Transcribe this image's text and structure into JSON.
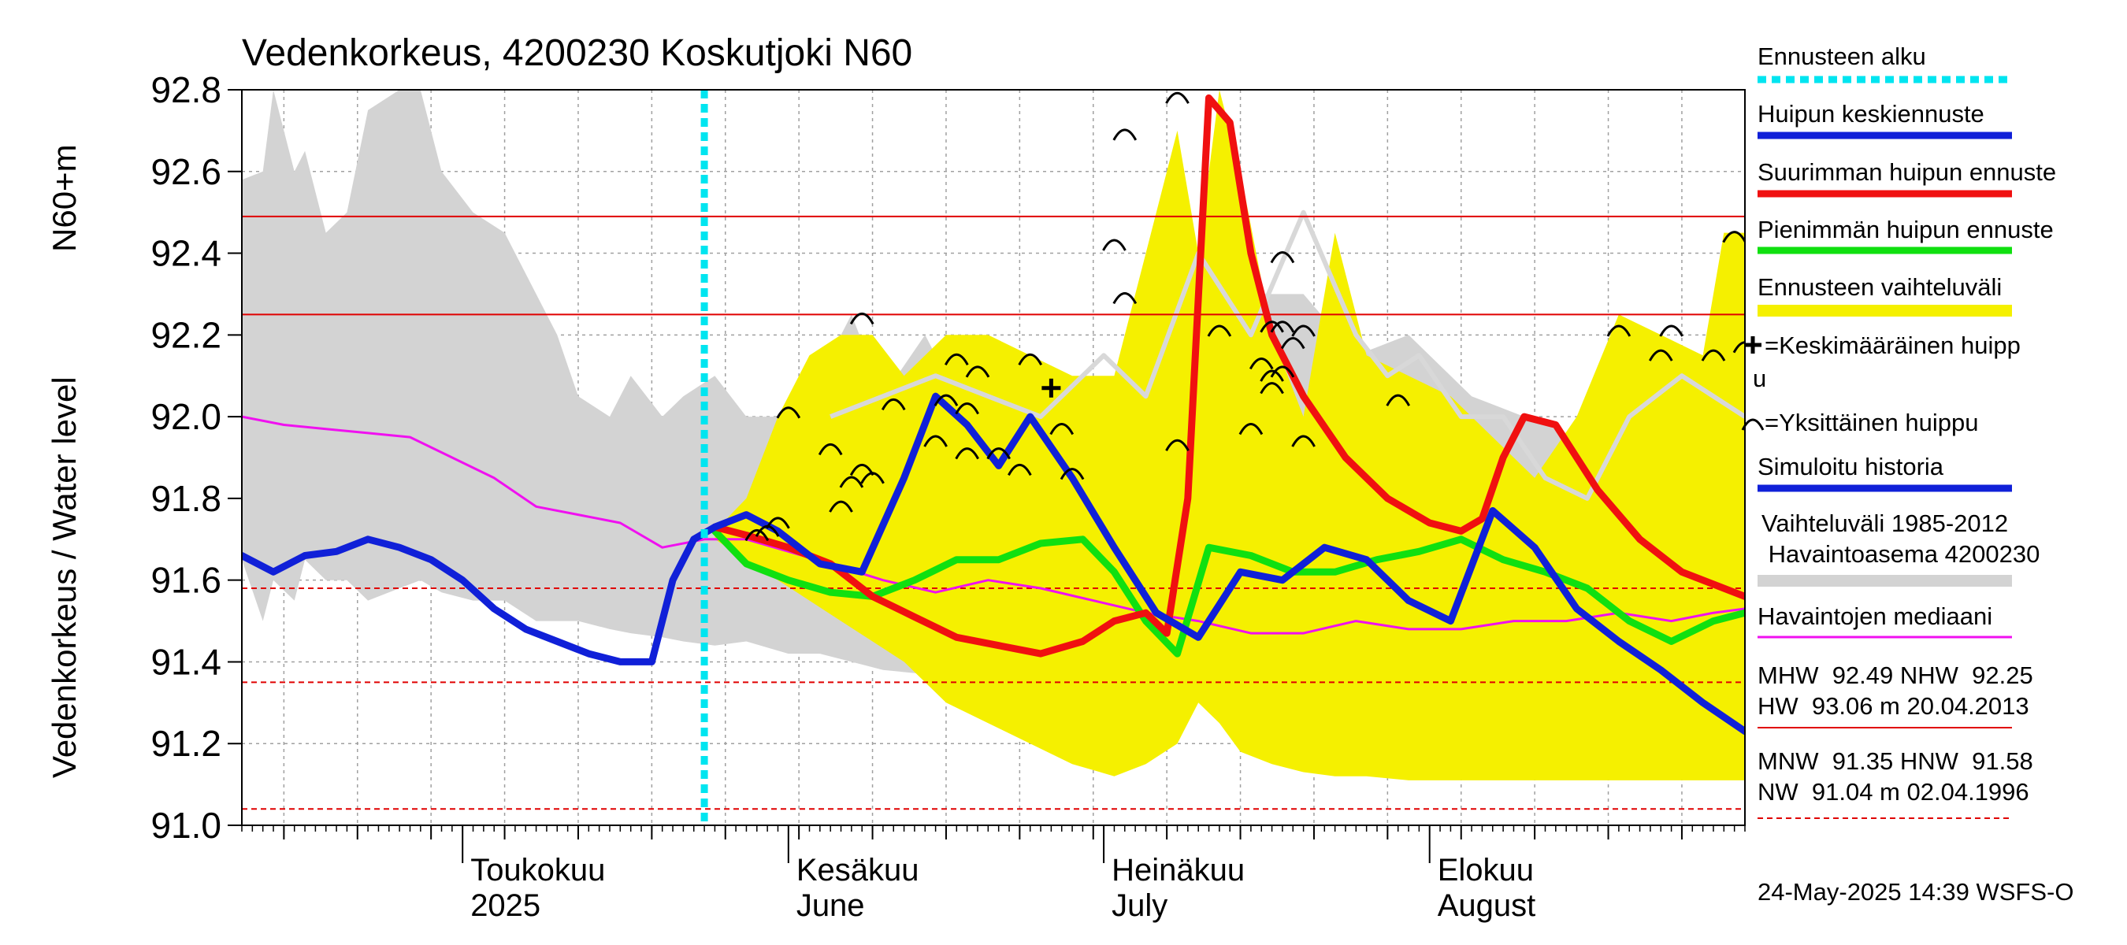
{
  "chart_data": {
    "type": "line",
    "title": "Vedenkorkeus, 4200230 Koskutjoki N60",
    "ylabel_top": "N60+m",
    "ylabel": "Vedenkorkeus / Water level",
    "ylim": [
      91.0,
      92.8
    ],
    "y_ticks": [
      "91.0",
      "91.2",
      "91.4",
      "91.6",
      "91.8",
      "92.0",
      "92.2",
      "92.4",
      "92.6",
      "92.8"
    ],
    "x_range": [
      "2025-04-10",
      "2025-08-31"
    ],
    "months": [
      {
        "fi": "Toukokuu",
        "en": "2025",
        "date": "2025-05-01"
      },
      {
        "fi": "Kesäkuu",
        "en": "June",
        "date": "2025-06-01"
      },
      {
        "fi": "Heinäkuu",
        "en": "July",
        "date": "2025-07-01"
      },
      {
        "fi": "Elokuu",
        "en": "August",
        "date": "2025-08-01"
      }
    ],
    "forecast_start": "2025-05-24",
    "hlines": {
      "solid": [
        92.49,
        92.25
      ],
      "dashed": [
        91.58,
        91.35,
        91.04
      ]
    },
    "history_band": {
      "x": [
        "2025-04-10",
        "2025-04-12",
        "2025-04-13",
        "2025-04-15",
        "2025-04-16",
        "2025-04-18",
        "2025-04-20",
        "2025-04-22",
        "2025-04-25",
        "2025-04-27",
        "2025-04-29",
        "2025-05-02",
        "2025-05-05",
        "2025-05-08",
        "2025-05-10",
        "2025-05-12",
        "2025-05-15",
        "2025-05-17",
        "2025-05-20",
        "2025-05-22",
        "2025-05-25",
        "2025-05-28",
        "2025-06-01",
        "2025-06-04",
        "2025-06-07",
        "2025-06-10",
        "2025-06-14",
        "2025-06-18",
        "2025-06-22",
        "2025-06-26",
        "2025-07-01",
        "2025-07-06",
        "2025-07-10",
        "2025-07-13",
        "2025-07-16",
        "2025-07-20",
        "2025-07-25",
        "2025-07-30",
        "2025-08-05",
        "2025-08-10",
        "2025-08-15",
        "2025-08-20",
        "2025-08-25",
        "2025-08-29",
        "2025-08-31"
      ],
      "upper": [
        92.58,
        92.6,
        92.8,
        92.6,
        92.65,
        92.45,
        92.5,
        92.75,
        92.8,
        92.8,
        92.6,
        92.5,
        92.45,
        92.3,
        92.2,
        92.05,
        92.0,
        92.1,
        92.0,
        92.05,
        92.1,
        92.0,
        92.0,
        92.1,
        92.25,
        92.05,
        92.2,
        92.0,
        92.15,
        91.95,
        92.0,
        92.1,
        92.15,
        92.25,
        92.3,
        92.3,
        92.15,
        92.2,
        92.05,
        92.0,
        91.95,
        91.75,
        91.9,
        92.2,
        92.3
      ],
      "lower": [
        91.65,
        91.5,
        91.6,
        91.55,
        91.65,
        91.6,
        91.6,
        91.55,
        91.58,
        91.6,
        91.57,
        91.55,
        91.55,
        91.5,
        91.5,
        91.5,
        91.48,
        91.47,
        91.46,
        91.45,
        91.44,
        91.45,
        91.42,
        91.42,
        91.4,
        91.38,
        91.37,
        91.38,
        91.36,
        91.34,
        91.33,
        91.31,
        91.3,
        91.3,
        91.3,
        91.29,
        91.28,
        91.28,
        91.28,
        91.27,
        91.27,
        91.27,
        91.26,
        91.25,
        91.25
      ]
    },
    "history_median": {
      "x": [
        "2025-06-05",
        "2025-06-10",
        "2025-06-15",
        "2025-06-20",
        "2025-06-25",
        "2025-07-01",
        "2025-07-05",
        "2025-07-10",
        "2025-07-15",
        "2025-07-20",
        "2025-07-25",
        "2025-07-28",
        "2025-07-31",
        "2025-08-04",
        "2025-08-08",
        "2025-08-12",
        "2025-08-16",
        "2025-08-20",
        "2025-08-25",
        "2025-08-28",
        "2025-08-31"
      ],
      "y": [
        92.0,
        92.05,
        92.1,
        92.05,
        92.0,
        92.15,
        92.05,
        92.4,
        92.2,
        92.5,
        92.2,
        92.1,
        92.15,
        92.0,
        92.0,
        91.85,
        91.8,
        92.0,
        92.1,
        92.05,
        92.0
      ]
    },
    "forecast_band": {
      "x": [
        "2025-05-25",
        "2025-05-28",
        "2025-05-31",
        "2025-06-03",
        "2025-06-06",
        "2025-06-09",
        "2025-06-12",
        "2025-06-16",
        "2025-06-20",
        "2025-06-24",
        "2025-06-28",
        "2025-07-02",
        "2025-07-05",
        "2025-07-08",
        "2025-07-10",
        "2025-07-12",
        "2025-07-14",
        "2025-07-17",
        "2025-07-20",
        "2025-07-23",
        "2025-07-26",
        "2025-07-30",
        "2025-08-03",
        "2025-08-07",
        "2025-08-11",
        "2025-08-15",
        "2025-08-19",
        "2025-08-23",
        "2025-08-27",
        "2025-08-29",
        "2025-08-31"
      ],
      "upper": [
        91.72,
        91.8,
        92.0,
        92.15,
        92.2,
        92.2,
        92.1,
        92.2,
        92.2,
        92.15,
        92.1,
        92.1,
        92.4,
        92.7,
        92.4,
        92.8,
        92.6,
        92.2,
        92.0,
        92.45,
        92.15,
        92.1,
        92.05,
        91.95,
        91.85,
        92.0,
        92.25,
        92.2,
        92.15,
        92.45,
        92.45
      ],
      "lower": [
        91.7,
        91.65,
        91.6,
        91.55,
        91.5,
        91.45,
        91.4,
        91.3,
        91.25,
        91.2,
        91.15,
        91.12,
        91.15,
        91.2,
        91.3,
        91.25,
        91.18,
        91.15,
        91.13,
        91.12,
        91.12,
        91.11,
        91.11,
        91.11,
        91.11,
        91.11,
        91.11,
        91.11,
        91.11,
        91.11,
        91.11
      ]
    },
    "series": [
      {
        "name": "Huipun keskiennuste",
        "x": [
          "2025-04-10",
          "2025-04-13",
          "2025-04-16",
          "2025-04-19",
          "2025-04-22",
          "2025-04-25",
          "2025-04-28",
          "2025-05-01",
          "2025-05-04",
          "2025-05-07",
          "2025-05-10",
          "2025-05-13",
          "2025-05-16",
          "2025-05-19",
          "2025-05-21",
          "2025-05-23",
          "2025-05-25",
          "2025-05-28",
          "2025-05-31",
          "2025-06-04",
          "2025-06-08",
          "2025-06-12",
          "2025-06-15",
          "2025-06-18",
          "2025-06-21",
          "2025-06-24",
          "2025-06-28",
          "2025-07-02",
          "2025-07-06",
          "2025-07-10",
          "2025-07-14",
          "2025-07-18",
          "2025-07-22",
          "2025-07-26",
          "2025-07-30",
          "2025-08-03",
          "2025-08-07",
          "2025-08-11",
          "2025-08-15",
          "2025-08-19",
          "2025-08-23",
          "2025-08-27",
          "2025-08-31"
        ],
        "y": [
          91.66,
          91.62,
          91.66,
          91.67,
          91.7,
          91.68,
          91.65,
          91.6,
          91.53,
          91.48,
          91.45,
          91.42,
          91.4,
          91.4,
          91.6,
          91.7,
          91.73,
          91.76,
          91.72,
          91.64,
          91.62,
          91.85,
          92.05,
          91.98,
          91.88,
          92.0,
          91.85,
          91.68,
          91.52,
          91.46,
          91.62,
          91.6,
          91.68,
          91.65,
          91.55,
          91.5,
          91.77,
          91.68,
          91.53,
          91.45,
          91.38,
          91.3,
          91.23
        ]
      },
      {
        "name": "Suurimman huipun ennuste",
        "x": [
          "2025-05-25",
          "2025-05-28",
          "2025-06-01",
          "2025-06-05",
          "2025-06-09",
          "2025-06-13",
          "2025-06-17",
          "2025-06-21",
          "2025-06-25",
          "2025-06-29",
          "2025-07-02",
          "2025-07-05",
          "2025-07-07",
          "2025-07-09",
          "2025-07-11",
          "2025-07-13",
          "2025-07-15",
          "2025-07-17",
          "2025-07-20",
          "2025-07-24",
          "2025-07-28",
          "2025-08-01",
          "2025-08-04",
          "2025-08-06",
          "2025-08-08",
          "2025-08-10",
          "2025-08-13",
          "2025-08-17",
          "2025-08-21",
          "2025-08-25",
          "2025-08-31"
        ],
        "y": [
          91.73,
          91.71,
          91.68,
          91.64,
          91.56,
          91.51,
          91.46,
          91.44,
          91.42,
          91.45,
          91.5,
          91.52,
          91.47,
          91.8,
          92.78,
          92.72,
          92.4,
          92.2,
          92.05,
          91.9,
          91.8,
          91.74,
          91.72,
          91.75,
          91.9,
          92.0,
          91.98,
          91.82,
          91.7,
          91.62,
          91.56
        ]
      },
      {
        "name": "Pienimmän huipun ennuste",
        "x": [
          "2025-05-25",
          "2025-05-28",
          "2025-06-01",
          "2025-06-05",
          "2025-06-09",
          "2025-06-13",
          "2025-06-17",
          "2025-06-21",
          "2025-06-25",
          "2025-06-29",
          "2025-07-02",
          "2025-07-05",
          "2025-07-08",
          "2025-07-11",
          "2025-07-15",
          "2025-07-19",
          "2025-07-23",
          "2025-07-27",
          "2025-07-31",
          "2025-08-04",
          "2025-08-08",
          "2025-08-12",
          "2025-08-16",
          "2025-08-20",
          "2025-08-24",
          "2025-08-28",
          "2025-08-31"
        ],
        "y": [
          91.72,
          91.64,
          91.6,
          91.57,
          91.56,
          91.6,
          91.65,
          91.65,
          91.69,
          91.7,
          91.62,
          91.5,
          91.42,
          91.68,
          91.66,
          91.62,
          91.62,
          91.65,
          91.67,
          91.7,
          91.65,
          91.62,
          91.58,
          91.5,
          91.45,
          91.5,
          91.52
        ]
      },
      {
        "name": "Havaintojen mediaani",
        "x": [
          "2025-04-10",
          "2025-04-14",
          "2025-04-18",
          "2025-04-22",
          "2025-04-26",
          "2025-04-30",
          "2025-05-04",
          "2025-05-08",
          "2025-05-12",
          "2025-05-16",
          "2025-05-20",
          "2025-05-24",
          "2025-05-28",
          "2025-06-01",
          "2025-06-05",
          "2025-06-10",
          "2025-06-15",
          "2025-06-20",
          "2025-06-25",
          "2025-06-30",
          "2025-07-05",
          "2025-07-10",
          "2025-07-15",
          "2025-07-20",
          "2025-07-25",
          "2025-07-30",
          "2025-08-04",
          "2025-08-09",
          "2025-08-14",
          "2025-08-19",
          "2025-08-24",
          "2025-08-28",
          "2025-08-31"
        ],
        "y": [
          92.0,
          91.98,
          91.97,
          91.96,
          91.95,
          91.9,
          91.85,
          91.78,
          91.76,
          91.74,
          91.68,
          91.7,
          91.7,
          91.67,
          91.64,
          91.6,
          91.57,
          91.6,
          91.58,
          91.55,
          91.52,
          91.5,
          91.47,
          91.47,
          91.5,
          91.48,
          91.48,
          91.5,
          91.5,
          91.52,
          91.5,
          91.52,
          91.53
        ]
      }
    ],
    "peaks": [
      {
        "date": "2025-05-29",
        "y": 91.72
      },
      {
        "date": "2025-05-30",
        "y": 91.73
      },
      {
        "date": "2025-05-31",
        "y": 91.75
      },
      {
        "date": "2025-06-01",
        "y": 92.02
      },
      {
        "date": "2025-06-05",
        "y": 91.93
      },
      {
        "date": "2025-06-06",
        "y": 91.79
      },
      {
        "date": "2025-06-07",
        "y": 91.85
      },
      {
        "date": "2025-06-08",
        "y": 91.88
      },
      {
        "date": "2025-06-08",
        "y": 92.25
      },
      {
        "date": "2025-06-09",
        "y": 91.86
      },
      {
        "date": "2025-06-11",
        "y": 92.04
      },
      {
        "date": "2025-06-15",
        "y": 91.95
      },
      {
        "date": "2025-06-16",
        "y": 92.05
      },
      {
        "date": "2025-06-17",
        "y": 92.15
      },
      {
        "date": "2025-06-18",
        "y": 92.03
      },
      {
        "date": "2025-06-18",
        "y": 91.92
      },
      {
        "date": "2025-06-19",
        "y": 92.12
      },
      {
        "date": "2025-06-21",
        "y": 91.92
      },
      {
        "date": "2025-06-23",
        "y": 91.88
      },
      {
        "date": "2025-06-24",
        "y": 92.15
      },
      {
        "date": "2025-06-27",
        "y": 91.98
      },
      {
        "date": "2025-06-28",
        "y": 91.87
      },
      {
        "date": "2025-07-02",
        "y": 92.43
      },
      {
        "date": "2025-07-03",
        "y": 92.3
      },
      {
        "date": "2025-07-03",
        "y": 92.7
      },
      {
        "date": "2025-07-08",
        "y": 92.79
      },
      {
        "date": "2025-07-08",
        "y": 91.94
      },
      {
        "date": "2025-07-12",
        "y": 92.22
      },
      {
        "date": "2025-07-15",
        "y": 91.98
      },
      {
        "date": "2025-07-16",
        "y": 92.14
      },
      {
        "date": "2025-07-17",
        "y": 92.23
      },
      {
        "date": "2025-07-17",
        "y": 92.08
      },
      {
        "date": "2025-07-17",
        "y": 92.11
      },
      {
        "date": "2025-07-18",
        "y": 92.4
      },
      {
        "date": "2025-07-18",
        "y": 92.12
      },
      {
        "date": "2025-07-18",
        "y": 92.23
      },
      {
        "date": "2025-07-19",
        "y": 92.19
      },
      {
        "date": "2025-07-20",
        "y": 92.22
      },
      {
        "date": "2025-07-20",
        "y": 91.95
      },
      {
        "date": "2025-07-29",
        "y": 92.05
      },
      {
        "date": "2025-08-19",
        "y": 92.22
      },
      {
        "date": "2025-08-23",
        "y": 92.16
      },
      {
        "date": "2025-08-24",
        "y": 92.22
      },
      {
        "date": "2025-08-28",
        "y": 92.16
      },
      {
        "date": "2025-08-30",
        "y": 92.45
      },
      {
        "date": "2025-08-31",
        "y": 92.18
      }
    ],
    "mean_peak": {
      "date": "2025-06-26",
      "y": 92.07
    }
  },
  "legend": [
    {
      "label": "Ennusteen alku",
      "color": "#00e5f0",
      "style": "dotted"
    },
    {
      "label": "Huipun keskiennuste",
      "color": "#1020d8",
      "style": "line"
    },
    {
      "label": "Suurimman huipun ennuste",
      "color": "#f01010",
      "style": "line"
    },
    {
      "label": "Pienimmän huipun ennuste",
      "color": "#10e010",
      "style": "line"
    },
    {
      "label": "Ennusteen vaihteluväli",
      "color": "#f5f000",
      "style": "band"
    },
    {
      "label_line1": "=Keskimääräinen huipp",
      "label_line2": "u",
      "style": "cross"
    },
    {
      "label": "=Yksittäinen huippu",
      "style": "arc"
    },
    {
      "label": "Simuloitu historia",
      "color": "#1020d8",
      "style": "line"
    },
    {
      "label_line1": "Vaihteluväli 1985-2012",
      "label_line2": " Havaintoasema 4200230",
      "color": "#d3d3d3",
      "style": "band"
    },
    {
      "label": "Havaintojen mediaani",
      "color": "#f010f0",
      "style": "line"
    }
  ],
  "stats": {
    "line1": "MHW  92.49 NHW  92.25",
    "line2": "HW  93.06 m 20.04.2013",
    "line3": "MNW  91.35 HNW  91.58",
    "line4": "NW  91.04 m 02.04.1996"
  },
  "footer": "24-May-2025 14:39 WSFS-O",
  "colors": {
    "history_band": "#d3d3d3",
    "history_median": "#d8d8d8",
    "forecast_band": "#f5f000",
    "mean_forecast": "#1020d8",
    "max_forecast": "#f01010",
    "min_forecast": "#10e010",
    "obs_median": "#f010f0",
    "forecast_start": "#00e5f0",
    "hline": "#e00000"
  }
}
